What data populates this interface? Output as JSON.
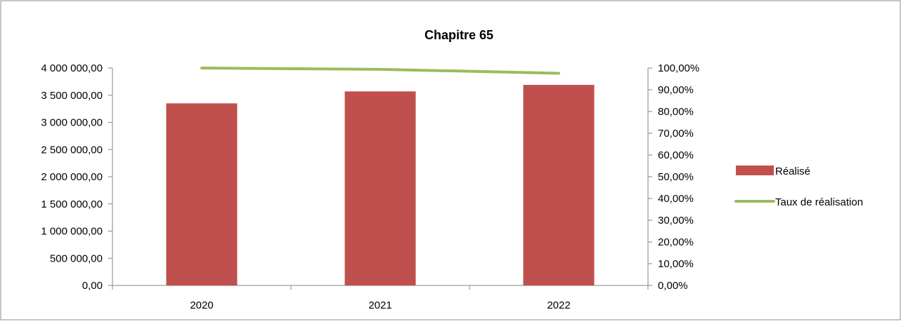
{
  "chart_data": {
    "type": "bar",
    "title": "Chapitre 65",
    "categories": [
      "2020",
      "2021",
      "2022"
    ],
    "series": [
      {
        "name": "Réalisé",
        "type": "bar",
        "axis": "left",
        "color": "#c0504d",
        "values": [
          3350000,
          3570000,
          3690000
        ]
      },
      {
        "name": "Taux de réalisation",
        "type": "line",
        "axis": "right",
        "color": "#9bbb59",
        "values": [
          100.0,
          99.4,
          97.6
        ]
      }
    ],
    "y_left": {
      "ylim": [
        0,
        4000000
      ],
      "ticks": [
        0,
        500000,
        1000000,
        1500000,
        2000000,
        2500000,
        3000000,
        3500000,
        4000000
      ],
      "tick_labels": [
        "0,00",
        "500 000,00",
        "1 000 000,00",
        "1 500 000,00",
        "2 000 000,00",
        "2 500 000,00",
        "3 000 000,00",
        "3 500 000,00",
        "4 000 000,00"
      ]
    },
    "y_right": {
      "ylim": [
        0,
        100
      ],
      "ticks": [
        0,
        10,
        20,
        30,
        40,
        50,
        60,
        70,
        80,
        90,
        100
      ],
      "tick_labels": [
        "0,00%",
        "10,00%",
        "20,00%",
        "30,00%",
        "40,00%",
        "50,00%",
        "60,00%",
        "70,00%",
        "80,00%",
        "90,00%",
        "100,00%"
      ]
    },
    "grid": false,
    "legend": {
      "placement": "right"
    }
  }
}
